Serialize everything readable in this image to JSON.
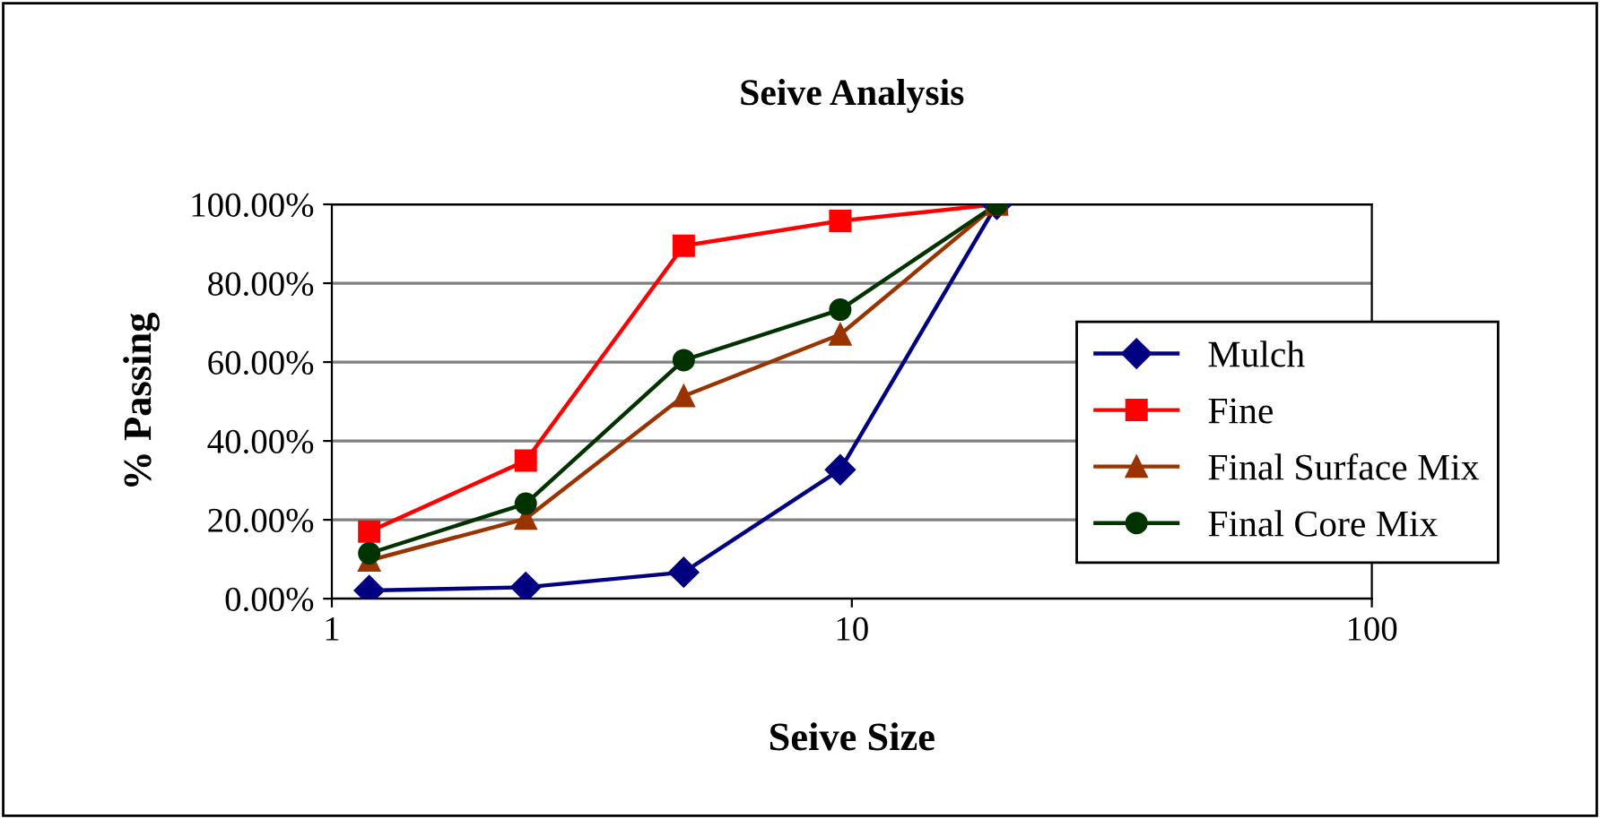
{
  "chart_data": {
    "type": "line",
    "title": "Seive Analysis",
    "xlabel": "Seive Size",
    "ylabel": "% Passing",
    "log": "x",
    "xlim": [
      1,
      100
    ],
    "xticks": [
      1,
      10,
      100
    ],
    "ylim": [
      0,
      100
    ],
    "yticks": [
      {
        "value": 0,
        "label": "0.00%"
      },
      {
        "value": 20,
        "label": "20.00%"
      },
      {
        "value": 40,
        "label": "40.00%"
      },
      {
        "value": 60,
        "label": "60.00%"
      },
      {
        "value": 80,
        "label": "80.00%"
      },
      {
        "value": 100,
        "label": "100.00%"
      }
    ],
    "grid": "y",
    "legend": "right",
    "x": [
      1.18,
      2.36,
      4.75,
      9.5,
      19
    ],
    "series": [
      {
        "name": "Mulch",
        "color": "#000080",
        "marker": "diamond",
        "values": [
          2.1,
          2.9,
          6.7,
          32.7,
          100
        ]
      },
      {
        "name": "Fine",
        "color": "#ff0000",
        "marker": "square",
        "values": [
          17,
          35,
          89.5,
          95.8,
          100
        ]
      },
      {
        "name": "Final Surface Mix",
        "color": "#993300",
        "marker": "triangle",
        "values": [
          9.7,
          20.3,
          51.4,
          67,
          100
        ]
      },
      {
        "name": "Final Core Mix",
        "color": "#003300",
        "marker": "circle",
        "values": [
          11.5,
          24.1,
          60.5,
          73.3,
          100
        ]
      }
    ]
  }
}
